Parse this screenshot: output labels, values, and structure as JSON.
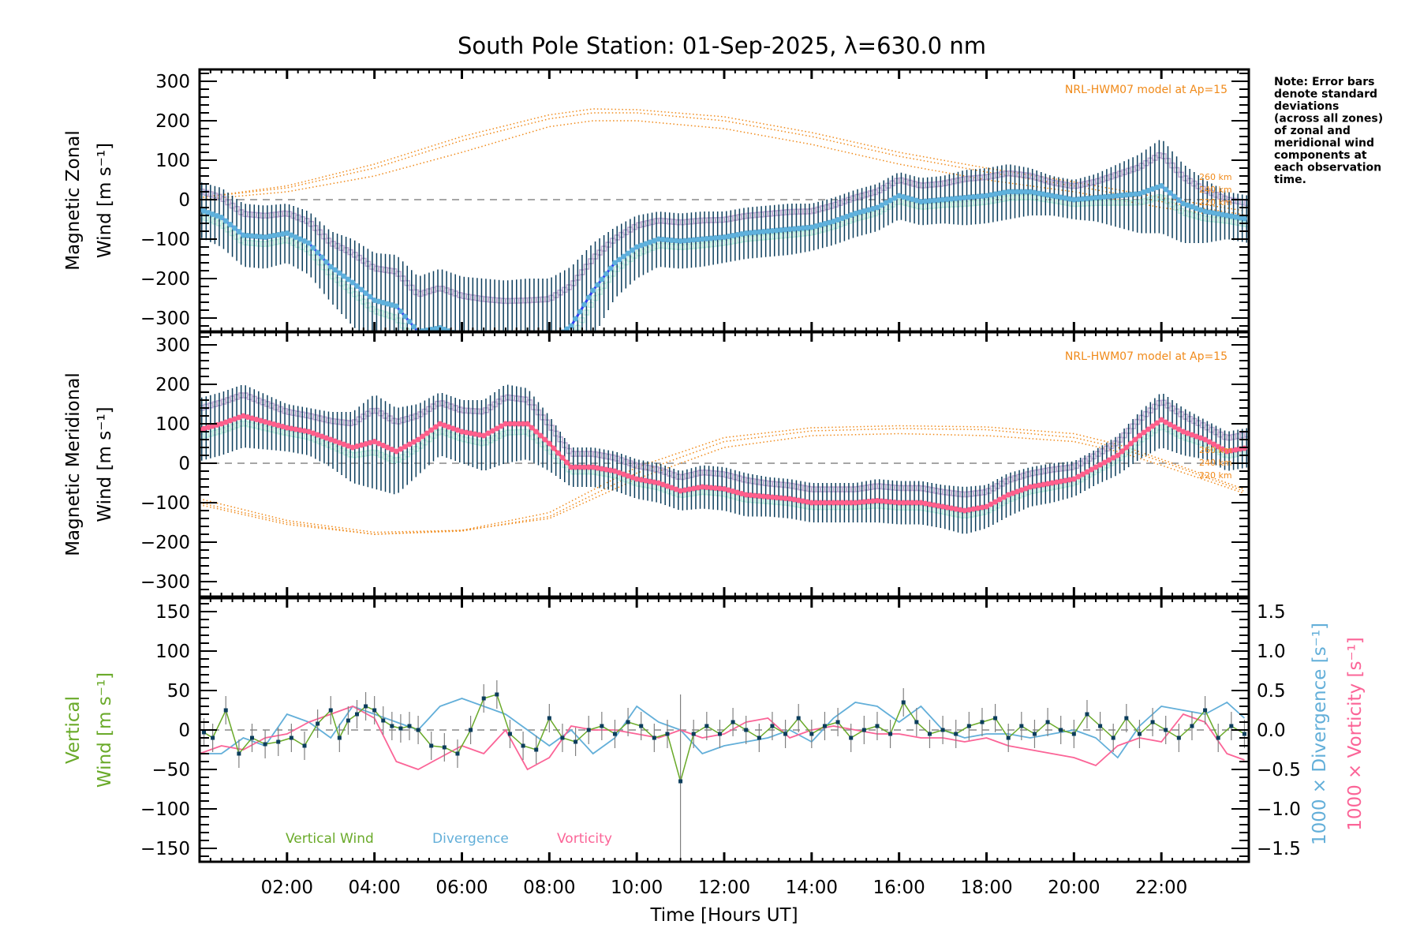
{
  "title": "South Pole Station: 01-Sep-2025, λ=630.0 nm",
  "note_lines": [
    "Note: Error bars",
    "denote standard",
    "deviations",
    "(across all zones)",
    "of zonal and",
    "meridional wind",
    "components at",
    "each observation",
    "time."
  ],
  "colors": {
    "zonal_line": "#2a3cf0",
    "zonal_marker": "#5fb1dc",
    "meridional_line": "#ff3c50",
    "meridional_marker": "#ff5f8c",
    "errorbar": "#0b3d5c",
    "model": "#f08a1a",
    "vertical": "#6aaa2a",
    "divergence": "#63afd9",
    "vorticity": "#fb6497",
    "zero_line": "#888888",
    "zone_lavender": "#b0a8e0",
    "zone_salmon": "#f8b8a0",
    "zone_yellow": "#f4efa0",
    "zone_cyan": "#b0f0f0"
  },
  "chart_data": [
    {
      "type": "line",
      "panel": "zonal",
      "title": "South Pole Station: 01-Sep-2025, λ=630.0 nm",
      "xlabel": "Time [Hours UT]",
      "ylabel_lines": [
        "Magnetic Zonal",
        "Wind [m s⁻¹]"
      ],
      "xlim": [
        0,
        24
      ],
      "ylim": [
        -330,
        330
      ],
      "yticks": [
        300,
        200,
        100,
        0,
        -100,
        -200,
        -300
      ],
      "ytick_labels": [
        "300",
        "200",
        "100",
        "0",
        "−100",
        "−200",
        "−300"
      ],
      "model_label": "NRL-HWM07 model at Ap=15",
      "altitude_labels": [
        "260 km",
        "240 km",
        "220 km"
      ],
      "series": [
        {
          "name": "Zonal wind (mean)",
          "x": [
            0.0,
            0.5,
            1.0,
            1.5,
            2.0,
            2.5,
            3.0,
            3.5,
            4.0,
            4.5,
            5.0,
            5.5,
            6.0,
            6.5,
            7.0,
            7.5,
            8.0,
            8.5,
            9.0,
            9.5,
            10.0,
            10.5,
            11.0,
            11.5,
            12.0,
            12.5,
            13.0,
            13.5,
            14.0,
            14.5,
            15.0,
            15.5,
            16.0,
            16.5,
            17.0,
            17.5,
            18.0,
            18.5,
            19.0,
            19.5,
            20.0,
            20.5,
            21.0,
            21.5,
            22.0,
            22.5,
            23.0,
            23.5,
            24.0
          ],
          "y": [
            -25,
            -45,
            -90,
            -95,
            -85,
            -110,
            -170,
            -210,
            -255,
            -270,
            -335,
            -325,
            -345,
            -360,
            -365,
            -370,
            -360,
            -320,
            -230,
            -160,
            -120,
            -100,
            -105,
            -100,
            -95,
            -85,
            -80,
            -75,
            -70,
            -55,
            -35,
            -20,
            10,
            -5,
            0,
            5,
            10,
            20,
            20,
            10,
            0,
            5,
            10,
            15,
            35,
            -10,
            -30,
            -40,
            -50
          ],
          "err": [
            70,
            75,
            80,
            80,
            75,
            80,
            90,
            110,
            120,
            130,
            140,
            150,
            150,
            160,
            160,
            170,
            160,
            150,
            120,
            90,
            80,
            70,
            70,
            70,
            65,
            65,
            65,
            65,
            60,
            60,
            60,
            60,
            60,
            60,
            60,
            70,
            70,
            70,
            60,
            50,
            50,
            60,
            80,
            100,
            120,
            100,
            80,
            60,
            60
          ]
        },
        {
          "name": "HWM07 220 km",
          "x": [
            0,
            2,
            4,
            6,
            8,
            9,
            10,
            12,
            14,
            16,
            18,
            20,
            22,
            24
          ],
          "y": [
            0,
            20,
            60,
            120,
            185,
            200,
            200,
            180,
            140,
            90,
            50,
            20,
            -20,
            -50
          ]
        },
        {
          "name": "HWM07 240 km",
          "x": [
            0,
            2,
            4,
            6,
            8,
            9,
            10,
            12,
            14,
            16,
            18,
            20,
            22,
            24
          ],
          "y": [
            5,
            30,
            80,
            150,
            205,
            220,
            220,
            200,
            160,
            110,
            70,
            35,
            -5,
            -40
          ]
        },
        {
          "name": "HWM07 260 km",
          "x": [
            0,
            2,
            4,
            6,
            8,
            9,
            10,
            12,
            14,
            16,
            18,
            20,
            22,
            24
          ],
          "y": [
            5,
            35,
            90,
            160,
            215,
            230,
            228,
            210,
            170,
            120,
            80,
            45,
            5,
            -30
          ]
        }
      ]
    },
    {
      "type": "line",
      "panel": "meridional",
      "ylabel_lines": [
        "Magnetic Meridional",
        "Wind [m s⁻¹]"
      ],
      "xlim": [
        0,
        24
      ],
      "ylim": [
        -330,
        330
      ],
      "yticks": [
        300,
        200,
        100,
        0,
        -100,
        -200,
        -300
      ],
      "ytick_labels": [
        "300",
        "200",
        "100",
        "0",
        "−100",
        "−200",
        "−300"
      ],
      "model_label": "NRL-HWM07 model at Ap=15",
      "altitude_labels": [
        "260 km",
        "240 km",
        "220 km"
      ],
      "series": [
        {
          "name": "Meridional wind (mean)",
          "x": [
            0.0,
            0.5,
            1.0,
            1.5,
            2.0,
            2.5,
            3.0,
            3.5,
            4.0,
            4.5,
            5.0,
            5.5,
            6.0,
            6.5,
            7.0,
            7.5,
            8.0,
            8.5,
            9.0,
            9.5,
            10.0,
            10.5,
            11.0,
            11.5,
            12.0,
            12.5,
            13.0,
            13.5,
            14.0,
            14.5,
            15.0,
            15.5,
            16.0,
            16.5,
            17.0,
            17.5,
            18.0,
            18.5,
            19.0,
            19.5,
            20.0,
            20.5,
            21.0,
            21.5,
            22.0,
            22.5,
            23.0,
            23.5,
            24.0
          ],
          "y": [
            85,
            100,
            120,
            105,
            90,
            80,
            60,
            40,
            55,
            30,
            60,
            100,
            80,
            70,
            100,
            100,
            50,
            -10,
            -10,
            -20,
            -40,
            -50,
            -70,
            -60,
            -65,
            -80,
            -85,
            -90,
            -100,
            -100,
            -100,
            -95,
            -100,
            -100,
            -110,
            -120,
            -110,
            -80,
            -60,
            -50,
            -40,
            -10,
            20,
            70,
            110,
            80,
            60,
            30,
            40
          ],
          "err": [
            80,
            80,
            80,
            70,
            60,
            60,
            70,
            90,
            120,
            110,
            90,
            80,
            80,
            90,
            100,
            90,
            70,
            50,
            50,
            50,
            50,
            50,
            50,
            55,
            55,
            55,
            50,
            50,
            50,
            50,
            50,
            55,
            55,
            55,
            55,
            60,
            55,
            55,
            50,
            50,
            45,
            45,
            50,
            60,
            70,
            60,
            50,
            50,
            50
          ]
        },
        {
          "name": "HWM07 220 km",
          "x": [
            0,
            2,
            4,
            6,
            8,
            10,
            12,
            14,
            16,
            18,
            20,
            21,
            22,
            24
          ],
          "y": [
            -90,
            -145,
            -175,
            -170,
            -140,
            -40,
            40,
            70,
            75,
            70,
            55,
            30,
            -5,
            -80
          ]
        },
        {
          "name": "HWM07 240 km",
          "x": [
            0,
            2,
            4,
            6,
            8,
            10,
            12,
            14,
            16,
            18,
            20,
            21,
            22,
            24
          ],
          "y": [
            -100,
            -150,
            -180,
            -172,
            -135,
            -25,
            55,
            82,
            88,
            85,
            65,
            40,
            5,
            -75
          ]
        },
        {
          "name": "HWM07 260 km",
          "x": [
            0,
            2,
            4,
            6,
            8,
            10,
            12,
            14,
            16,
            18,
            20,
            21,
            22,
            24
          ],
          "y": [
            -105,
            -155,
            -180,
            -170,
            -125,
            -10,
            65,
            90,
            95,
            92,
            75,
            48,
            10,
            -70
          ]
        }
      ]
    },
    {
      "type": "line",
      "panel": "vertical",
      "xlabel": "Time [Hours UT]",
      "xlim": [
        0,
        24
      ],
      "xticks": [
        2,
        4,
        6,
        8,
        10,
        12,
        14,
        16,
        18,
        20,
        22
      ],
      "xtick_labels": [
        "02:00",
        "04:00",
        "06:00",
        "08:00",
        "10:00",
        "12:00",
        "14:00",
        "16:00",
        "18:00",
        "20:00",
        "22:00"
      ],
      "ylabel_lines": [
        "Vertical",
        "Wind [m s⁻¹]"
      ],
      "ylim": [
        -165,
        165
      ],
      "yticks": [
        150,
        100,
        50,
        0,
        -50,
        -100,
        -150
      ],
      "ytick_labels": [
        "150",
        "100",
        "50",
        "0",
        "−50",
        "−100",
        "−150"
      ],
      "y2label_div": "1000 × Divergence [s⁻¹]",
      "y2label_vor": "1000 × Vorticity [s⁻¹]",
      "y2lim": [
        -1.65,
        1.65
      ],
      "y2ticks": [
        1.5,
        1.0,
        0.5,
        0.0,
        -0.5,
        -1.0,
        -1.5
      ],
      "y2tick_labels": [
        "1.5",
        "1.0",
        "0.5",
        "0.0",
        "−0.5",
        "−1.0",
        "−1.5"
      ],
      "legend": [
        "Vertical Wind",
        "Divergence",
        "Vorticity"
      ],
      "legend_position": "bottom-left",
      "series": [
        {
          "name": "Vertical Wind",
          "x": [
            0.1,
            0.3,
            0.6,
            0.9,
            1.2,
            1.5,
            1.8,
            2.1,
            2.4,
            2.7,
            3.0,
            3.2,
            3.4,
            3.6,
            3.8,
            4.0,
            4.2,
            4.4,
            4.6,
            4.8,
            5.0,
            5.3,
            5.6,
            5.9,
            6.2,
            6.5,
            6.8,
            7.1,
            7.4,
            7.7,
            8.0,
            8.3,
            8.6,
            8.9,
            9.2,
            9.5,
            9.8,
            10.1,
            10.4,
            10.7,
            11.0,
            11.3,
            11.6,
            11.9,
            12.2,
            12.5,
            12.8,
            13.1,
            13.4,
            13.7,
            14.0,
            14.3,
            14.6,
            14.9,
            15.2,
            15.5,
            15.8,
            16.1,
            16.4,
            16.7,
            17.0,
            17.3,
            17.6,
            17.9,
            18.2,
            18.5,
            18.8,
            19.1,
            19.4,
            19.7,
            20.0,
            20.3,
            20.6,
            20.9,
            21.2,
            21.5,
            21.8,
            22.1,
            22.4,
            22.7,
            23.0,
            23.3,
            23.6,
            23.9
          ],
          "y": [
            -3,
            -10,
            25,
            -30,
            -10,
            -18,
            -15,
            -10,
            -20,
            8,
            25,
            -10,
            12,
            20,
            30,
            25,
            12,
            5,
            2,
            5,
            0,
            -20,
            -22,
            -30,
            0,
            40,
            45,
            -5,
            -20,
            -25,
            15,
            -10,
            -15,
            0,
            5,
            -5,
            10,
            5,
            -10,
            -5,
            -65,
            -5,
            5,
            -5,
            10,
            0,
            -10,
            5,
            -5,
            15,
            -5,
            5,
            10,
            -10,
            0,
            5,
            -5,
            35,
            10,
            -5,
            0,
            -5,
            5,
            10,
            15,
            -10,
            5,
            -5,
            10,
            0,
            -5,
            20,
            5,
            -10,
            15,
            -5,
            10,
            0,
            -10,
            5,
            25,
            -10,
            5,
            -5
          ],
          "err": 18
        },
        {
          "name": "Divergence",
          "x": [
            0,
            0.5,
            1.0,
            1.5,
            2.0,
            2.5,
            3.0,
            3.5,
            4.0,
            4.5,
            5.0,
            5.5,
            6.0,
            6.5,
            7.0,
            7.5,
            8.0,
            8.5,
            9.0,
            9.5,
            10.0,
            10.5,
            11.0,
            11.5,
            12.0,
            12.5,
            13.0,
            13.5,
            14.0,
            14.5,
            15.0,
            15.5,
            16.0,
            16.5,
            17.0,
            17.5,
            18.0,
            18.5,
            19.0,
            19.5,
            20.0,
            20.5,
            21.0,
            21.5,
            22.0,
            22.5,
            23.0,
            23.5,
            24.0
          ],
          "y": [
            -0.3,
            -0.3,
            -0.1,
            -0.2,
            0.2,
            0.1,
            -0.1,
            0.3,
            0.2,
            0.1,
            0.0,
            0.3,
            0.4,
            0.3,
            0.2,
            0.0,
            -0.2,
            0.0,
            -0.3,
            -0.1,
            0.3,
            0.1,
            0.0,
            -0.3,
            -0.2,
            -0.15,
            -0.1,
            0.0,
            -0.15,
            0.15,
            0.35,
            0.3,
            0.1,
            0.3,
            0.0,
            -0.1,
            -0.05,
            -0.05,
            -0.1,
            -0.05,
            0.0,
            -0.1,
            -0.35,
            0.05,
            0.3,
            0.25,
            0.2,
            0.35,
            0.1
          ],
          "axis": "right"
        },
        {
          "name": "Vorticity",
          "x": [
            0,
            0.5,
            1.0,
            1.5,
            2.0,
            2.5,
            3.0,
            3.5,
            4.0,
            4.5,
            5.0,
            5.5,
            6.0,
            6.5,
            7.0,
            7.5,
            8.0,
            8.5,
            9.0,
            9.5,
            10.0,
            10.5,
            11.0,
            11.5,
            12.0,
            12.5,
            13.0,
            13.5,
            14.0,
            14.5,
            15.0,
            15.5,
            16.0,
            16.5,
            17.0,
            17.5,
            18.0,
            18.5,
            19.0,
            19.5,
            20.0,
            20.5,
            21.0,
            21.5,
            22.0,
            22.5,
            23.0,
            23.5,
            24.0
          ],
          "y": [
            -0.3,
            -0.2,
            -0.25,
            -0.1,
            -0.05,
            0.1,
            0.2,
            0.3,
            0.15,
            -0.4,
            -0.5,
            -0.35,
            -0.2,
            -0.3,
            0.0,
            -0.5,
            -0.35,
            0.05,
            0.0,
            0.0,
            -0.05,
            -0.1,
            0.0,
            -0.1,
            -0.05,
            0.1,
            0.15,
            -0.1,
            0.0,
            0.05,
            0.0,
            -0.05,
            -0.05,
            -0.1,
            -0.1,
            -0.15,
            -0.1,
            -0.2,
            -0.25,
            -0.3,
            -0.35,
            -0.45,
            -0.2,
            -0.1,
            -0.15,
            0.2,
            0.1,
            -0.3,
            -0.4
          ],
          "axis": "right"
        }
      ]
    }
  ]
}
